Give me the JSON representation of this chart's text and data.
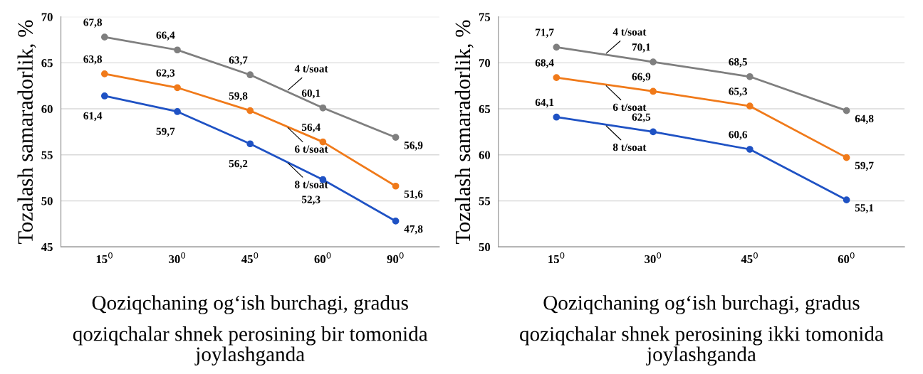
{
  "chart_data": [
    {
      "type": "line",
      "categories": [
        "15$^{0}$",
        "30$^{0}$",
        "45$^{0}$",
        "60$^{0}$",
        "90$^{0}$"
      ],
      "ylabel": "Tozalash samaradorlik, %",
      "xlabel": "Qoziqchaning og‘ish burchagi, gradus",
      "ylim": [
        45,
        70
      ],
      "yticks": [
        45,
        50,
        55,
        60,
        65,
        70
      ],
      "grid": "y",
      "marker": "circle",
      "legend": false,
      "series": [
        {
          "name": "4 t/soat",
          "color": "#7f7f7f",
          "values": [
            67.8,
            66.4,
            63.7,
            60.1,
            56.9
          ],
          "value_labels": [
            "67,8",
            "66,4",
            "63,7",
            "60,1",
            "56,9"
          ]
        },
        {
          "name": "6 t/soat",
          "color": "#f07a1a",
          "values": [
            63.8,
            62.3,
            59.8,
            56.4,
            51.6
          ],
          "value_labels": [
            "63,8",
            "62,3",
            "59,8",
            "56,4",
            "51,6"
          ]
        },
        {
          "name": "8 t/soat",
          "color": "#1f52c4",
          "values": [
            61.4,
            59.7,
            56.2,
            52.3,
            47.8
          ],
          "value_labels": [
            "61,4",
            "59,7",
            "56,2",
            "52,3",
            "47,8"
          ]
        }
      ],
      "annotations": [
        "qoziqchalar shnek perosining bir tomonida\njoylashganda"
      ]
    },
    {
      "type": "line",
      "categories": [
        "15$^{0}$",
        "30$^{0}$",
        "45$^{0}$",
        "60$^{0}$"
      ],
      "ylabel": "Tozalash samaradorlik, %",
      "xlabel": "Qoziqchaning og‘ish burchagi, gradus",
      "ylim": [
        50,
        75
      ],
      "yticks": [
        50,
        55,
        60,
        65,
        70,
        75
      ],
      "grid": "y",
      "marker": "circle",
      "legend": false,
      "series": [
        {
          "name": "4 t/soat",
          "color": "#7f7f7f",
          "values": [
            71.7,
            70.1,
            68.5,
            64.8
          ],
          "value_labels": [
            "71,7",
            "70,1",
            "68,5",
            "64,8"
          ]
        },
        {
          "name": "6 t/soat",
          "color": "#f07a1a",
          "values": [
            68.4,
            66.9,
            65.3,
            59.7
          ],
          "value_labels": [
            "68,4",
            "66,9",
            "65,3",
            "59,7"
          ]
        },
        {
          "name": "8 t/soat",
          "color": "#1f52c4",
          "values": [
            64.1,
            62.5,
            60.6,
            55.1
          ],
          "value_labels": [
            "64,1",
            "62,5",
            "60,6",
            "55,1"
          ]
        }
      ],
      "annotations": [
        "qoziqchalar shnek perosining ikki tomonida\njoylashganda"
      ]
    }
  ]
}
